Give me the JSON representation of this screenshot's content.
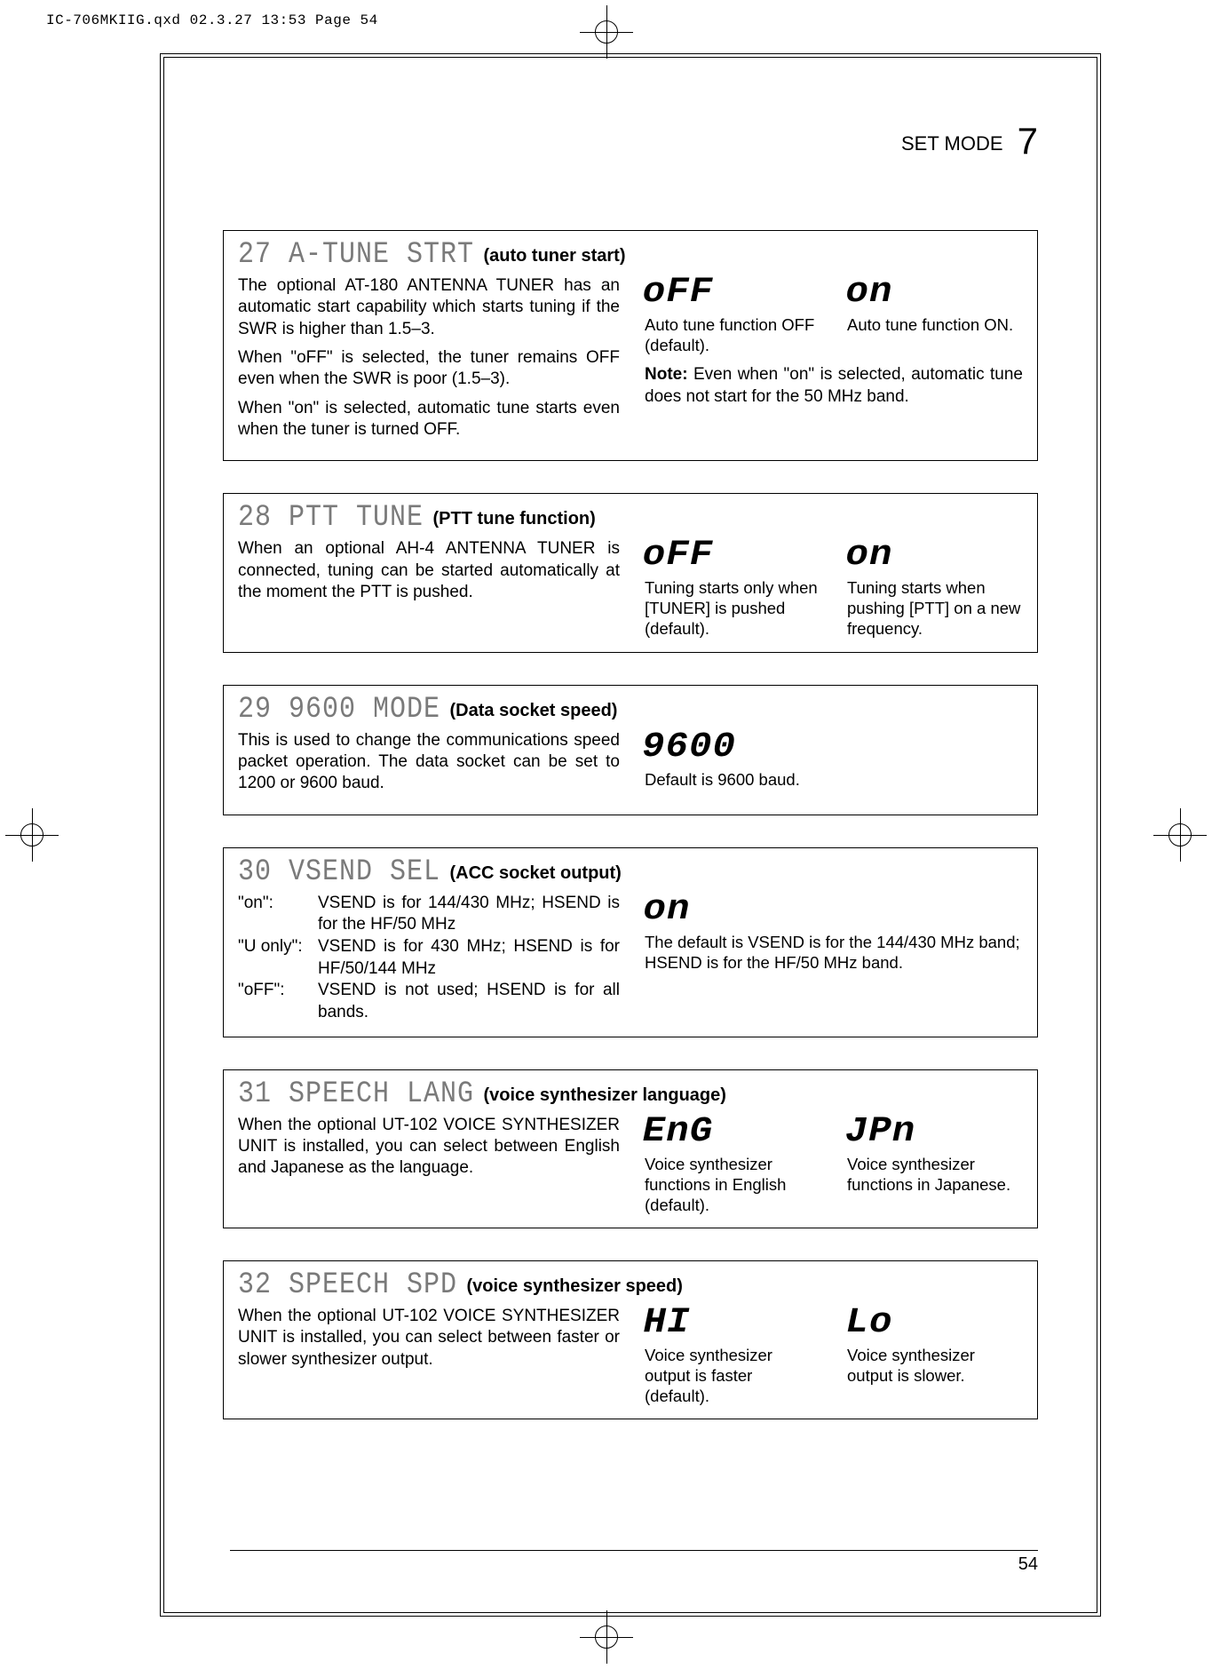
{
  "print_header": "IC-706MKIIG.qxd  02.3.27 13:53  Page 54",
  "running_head": {
    "label": "SET MODE",
    "chapter": "7"
  },
  "page_number": "54",
  "sections": [
    {
      "title_dot": "27 A-TUNE STRT",
      "title_sub": "(auto tuner start)",
      "left": [
        "The optional AT-180 ANTENNA TUNER has an automatic start capability which starts tuning if the SWR is higher than 1.5–3.",
        "When \"oFF\" is selected, the tuner remains OFF even when the SWR is poor (1.5–3).",
        "When \"on\" is selected, automatic tune starts even when the tuner is turned OFF."
      ],
      "opts": [
        {
          "seg": "oFF",
          "cap": "Auto tune function OFF (default)."
        },
        {
          "seg": "on",
          "cap": "Auto tune function ON."
        }
      ],
      "note": "Note: Even when \"on\" is selected, automatic tune does not start for the 50 MHz band."
    },
    {
      "title_dot": "28 PTT TUNE",
      "title_sub": "(PTT tune function)",
      "left": [
        "When an optional AH-4 ANTENNA TUNER is connected, tuning can be started automatically at the moment the PTT is pushed."
      ],
      "opts": [
        {
          "seg": "oFF",
          "cap": "Tuning starts only when [TUNER] is pushed (default)."
        },
        {
          "seg": "on",
          "cap": "Tuning starts when pushing [PTT] on a new frequency."
        }
      ]
    },
    {
      "title_dot": "29 9600 MODE",
      "title_sub": "(Data socket speed)",
      "left": [
        "This is used to change the communications speed packet operation. The data socket can be set to 1200 or 9600 baud."
      ],
      "opts": [
        {
          "seg": "9600",
          "cap": "Default is 9600 baud."
        }
      ]
    },
    {
      "title_dot": "30 VSEND SEL",
      "title_sub": "(ACC socket output)",
      "deflist": [
        {
          "k": "\"on\":",
          "v": "VSEND is for 144/430 MHz; HSEND is for the HF/50 MHz"
        },
        {
          "k": "\"U only\":",
          "v": "VSEND is for 430 MHz; HSEND is for HF/50/144 MHz"
        },
        {
          "k": "\"oFF\":",
          "v": "VSEND is not used; HSEND is for all bands."
        }
      ],
      "opts": [
        {
          "seg": "on",
          "cap": "The default is VSEND is for the 144/430 MHz band; HSEND is for the HF/50 MHz band."
        }
      ]
    },
    {
      "title_dot": "31 SPEECH LANG",
      "title_sub": "(voice synthesizer language)",
      "left": [
        "When the optional UT-102 VOICE SYNTHESIZER UNIT is installed, you can select between English and Japanese as the language."
      ],
      "opts": [
        {
          "seg": "EnG",
          "cap": "Voice synthesizer functions in English (default)."
        },
        {
          "seg": "JPn",
          "cap": "Voice synthesizer functions in Japanese."
        }
      ]
    },
    {
      "title_dot": "32 SPEECH SPD",
      "title_sub": "(voice synthesizer speed)",
      "left": [
        "When the optional UT-102 VOICE SYNTHESIZER UNIT is installed, you can select between faster or slower synthesizer output."
      ],
      "opts": [
        {
          "seg": "HI",
          "cap": "Voice synthesizer output is faster (default)."
        },
        {
          "seg": "Lo",
          "cap": "Voice synthesizer output is slower."
        }
      ]
    }
  ]
}
